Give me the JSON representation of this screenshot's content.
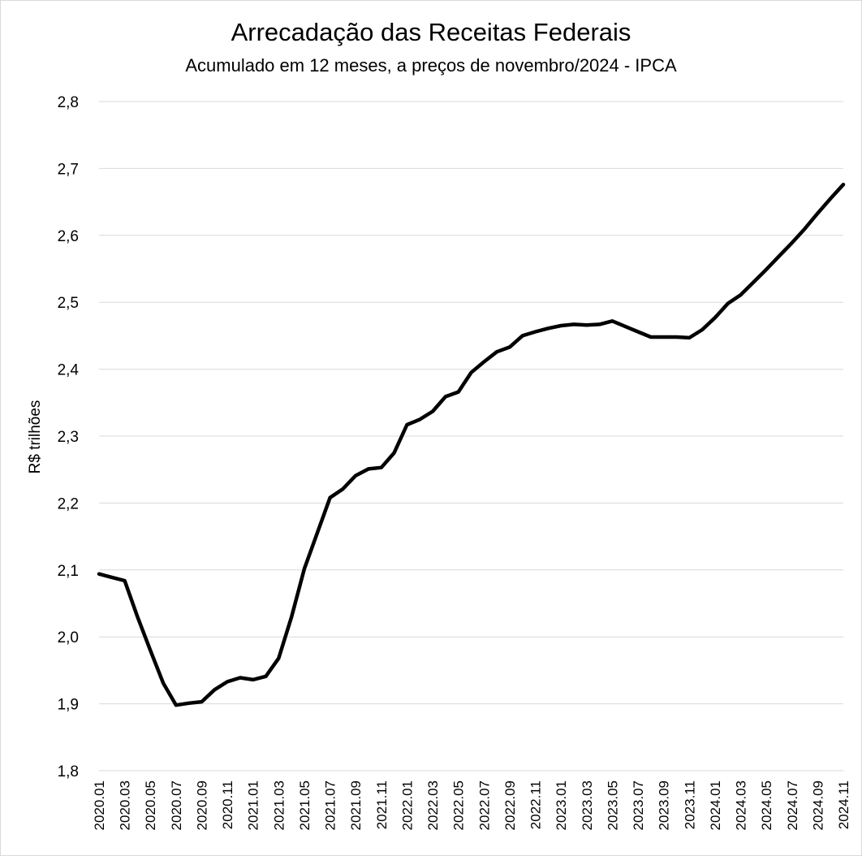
{
  "chart_data": {
    "type": "line",
    "title": "Arrecadação das Receitas Federais",
    "subtitle": "Acumulado em 12 meses, a preços de novembro/2024 - IPCA",
    "ylabel": "R$ trilhões",
    "xlabel": "",
    "ylim": [
      1.8,
      2.8
    ],
    "y_ticks": [
      "1,8",
      "1,9",
      "2,0",
      "2,1",
      "2,2",
      "2,3",
      "2,4",
      "2,5",
      "2,6",
      "2,7",
      "2,8"
    ],
    "y_tick_values": [
      1.8,
      1.9,
      2.0,
      2.1,
      2.2,
      2.3,
      2.4,
      2.5,
      2.6,
      2.7,
      2.8
    ],
    "x_tick_labels": [
      "2020.01",
      "2020.03",
      "2020.05",
      "2020.07",
      "2020.09",
      "2020.11",
      "2021.01",
      "2021.03",
      "2021.05",
      "2021.07",
      "2021.09",
      "2021.11",
      "2022.01",
      "2022.03",
      "2022.05",
      "2022.07",
      "2022.09",
      "2022.11",
      "2023.01",
      "2023.03",
      "2023.05",
      "2023.07",
      "2023.09",
      "2023.11",
      "2024.01",
      "2024.03",
      "2024.05",
      "2024.07",
      "2024.09",
      "2024.11"
    ],
    "grid": true,
    "legend": "none",
    "line_color": "#000000",
    "series": [
      {
        "x": [
          "2020.01",
          "2020.02",
          "2020.03",
          "2020.04",
          "2020.05",
          "2020.06",
          "2020.07",
          "2020.08",
          "2020.09",
          "2020.10",
          "2020.11",
          "2020.12",
          "2021.01",
          "2021.02",
          "2021.03",
          "2021.04",
          "2021.05",
          "2021.06",
          "2021.07",
          "2021.08",
          "2021.09",
          "2021.10",
          "2021.11",
          "2021.12",
          "2022.01",
          "2022.02",
          "2022.03",
          "2022.04",
          "2022.05",
          "2022.06",
          "2022.07",
          "2022.08",
          "2022.09",
          "2022.10",
          "2022.11",
          "2022.12",
          "2023.01",
          "2023.02",
          "2023.03",
          "2023.04",
          "2023.05",
          "2023.06",
          "2023.07",
          "2023.08",
          "2023.09",
          "2023.10",
          "2023.11",
          "2023.12",
          "2024.01",
          "2024.02",
          "2024.03",
          "2024.04",
          "2024.05",
          "2024.06",
          "2024.07",
          "2024.08",
          "2024.09",
          "2024.10",
          "2024.11"
        ],
        "values": [
          2.094,
          2.089,
          2.084,
          2.03,
          1.98,
          1.931,
          1.898,
          1.901,
          1.903,
          1.921,
          1.933,
          1.939,
          1.936,
          1.941,
          1.968,
          2.03,
          2.102,
          2.155,
          2.208,
          2.221,
          2.241,
          2.251,
          2.253,
          2.275,
          2.317,
          2.325,
          2.337,
          2.359,
          2.366,
          2.395,
          2.411,
          2.426,
          2.433,
          2.45,
          2.456,
          2.461,
          2.465,
          2.467,
          2.466,
          2.467,
          2.472,
          2.464,
          2.456,
          2.448,
          2.448,
          2.448,
          2.447,
          2.459,
          2.477,
          2.498,
          2.511,
          2.53,
          2.549,
          2.569,
          2.589,
          2.61,
          2.633,
          2.655,
          2.676
        ]
      }
    ]
  }
}
